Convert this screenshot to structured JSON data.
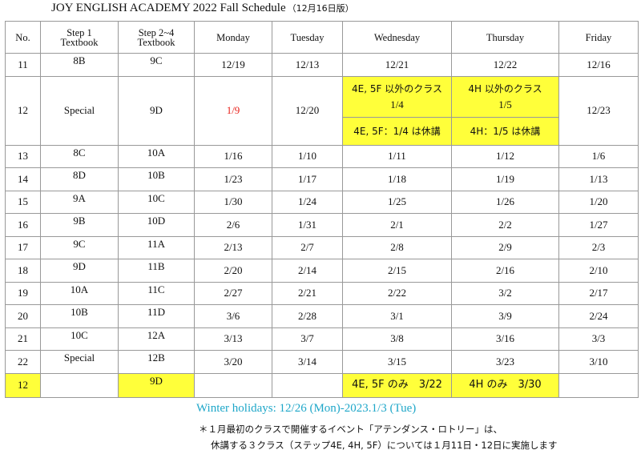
{
  "title": {
    "main": "JOY ENGLISH ACADEMY 2022 Fall Schedule",
    "edition": "（12月16日版）"
  },
  "headers": {
    "no": "No.",
    "step1": [
      "Step 1",
      "Textbook"
    ],
    "step2": [
      "Step 2~4",
      "Textbook"
    ],
    "days": [
      "Monday",
      "Tuesday",
      "Wednesday",
      "Thursday",
      "Friday"
    ]
  },
  "rows": [
    {
      "no": "11",
      "s1": "8B",
      "s2": "9C",
      "mon": "12/19",
      "tue": "12/13",
      "wed": "12/21",
      "thu": "12/22",
      "fri": "12/16"
    },
    {
      "no": "12",
      "s1": "Special",
      "s2": "9D",
      "mon": "1/9",
      "tue": "12/20",
      "wed_top": "4E, 5F 以外のクラス",
      "wed_date": "1/4",
      "wed_bottom": "4E, 5F：1/4 は休講",
      "thu_top": "4H 以外のクラス",
      "thu_date": "1/5",
      "thu_bottom": "4H：1/5 は休講",
      "fri": "12/23"
    },
    {
      "no": "13",
      "s1": "8C",
      "s2": "10A",
      "mon": "1/16",
      "tue": "1/10",
      "wed": "1/11",
      "thu": "1/12",
      "fri": "1/6"
    },
    {
      "no": "14",
      "s1": "8D",
      "s2": "10B",
      "mon": "1/23",
      "tue": "1/17",
      "wed": "1/18",
      "thu": "1/19",
      "fri": "1/13"
    },
    {
      "no": "15",
      "s1": "9A",
      "s2": "10C",
      "mon": "1/30",
      "tue": "1/24",
      "wed": "1/25",
      "thu": "1/26",
      "fri": "1/20"
    },
    {
      "no": "16",
      "s1": "9B",
      "s2": "10D",
      "mon": "2/6",
      "tue": "1/31",
      "wed": "2/1",
      "thu": "2/2",
      "fri": "1/27"
    },
    {
      "no": "17",
      "s1": "9C",
      "s2": "11A",
      "mon": "2/13",
      "tue": "2/7",
      "wed": "2/8",
      "thu": "2/9",
      "fri": "2/3"
    },
    {
      "no": "18",
      "s1": "9D",
      "s2": "11B",
      "mon": "2/20",
      "tue": "2/14",
      "wed": "2/15",
      "thu": "2/16",
      "fri": "2/10"
    },
    {
      "no": "19",
      "s1": "10A",
      "s2": "11C",
      "mon": "2/27",
      "tue": "2/21",
      "wed": "2/22",
      "thu": "3/2",
      "fri": "2/17"
    },
    {
      "no": "20",
      "s1": "10B",
      "s2": "11D",
      "mon": "3/6",
      "tue": "2/28",
      "wed": "3/1",
      "thu": "3/9",
      "fri": "2/24"
    },
    {
      "no": "21",
      "s1": "10C",
      "s2": "12A",
      "mon": "3/13",
      "tue": "3/7",
      "wed": "3/8",
      "thu": "3/16",
      "fri": "3/3"
    },
    {
      "no": "22",
      "s1": "Special",
      "s2": "12B",
      "mon": "3/20",
      "tue": "3/14",
      "wed": "3/15",
      "thu": "3/23",
      "fri": "3/10"
    },
    {
      "no": "12",
      "s1": "",
      "s2": "9D",
      "mon": "",
      "tue": "",
      "wed": "4E, 5F のみ　3/22",
      "thu": "4H のみ　3/30",
      "fri": ""
    }
  ],
  "winter": "Winter holidays: 12/26 (Mon)-2023.1/3 (Tue)",
  "notes": [
    "＊１月最初のクラスで開催するイベント「アテンダンス・ロトリー」は、",
    "休講する３クラス（ステップ4E, 4H, 5F）については１月11日・12日に実施します"
  ],
  "colors": {
    "highlight": "#ffff3a",
    "red": "#e8201a",
    "winter": "#1fa7c9",
    "border": "#999999"
  }
}
